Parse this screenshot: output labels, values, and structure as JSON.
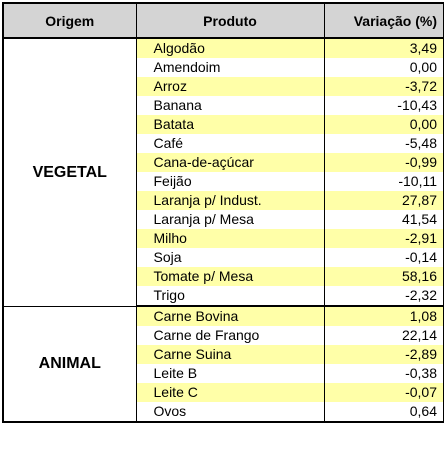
{
  "header": {
    "origem": "Origem",
    "produto": "Produto",
    "variacao": "Variação (%)"
  },
  "groups": [
    {
      "origin": "VEGETAL",
      "rows": [
        {
          "produto": "Algodão",
          "variacao": "3,49"
        },
        {
          "produto": "Amendoim",
          "variacao": "0,00"
        },
        {
          "produto": "Arroz",
          "variacao": "-3,72"
        },
        {
          "produto": "Banana",
          "variacao": "-10,43"
        },
        {
          "produto": "Batata",
          "variacao": "0,00"
        },
        {
          "produto": "Café",
          "variacao": "-5,48"
        },
        {
          "produto": "Cana-de-açúcar",
          "variacao": "-0,99"
        },
        {
          "produto": "Feijão",
          "variacao": "-10,11"
        },
        {
          "produto": "Laranja p/ Indust.",
          "variacao": "27,87"
        },
        {
          "produto": "Laranja p/ Mesa",
          "variacao": "41,54"
        },
        {
          "produto": "Milho",
          "variacao": "-2,91"
        },
        {
          "produto": "Soja",
          "variacao": "-0,14"
        },
        {
          "produto": "Tomate p/ Mesa",
          "variacao": "58,16"
        },
        {
          "produto": "Trigo",
          "variacao": "-2,32"
        }
      ]
    },
    {
      "origin": "ANIMAL",
      "rows": [
        {
          "produto": "Carne Bovina",
          "variacao": "1,08"
        },
        {
          "produto": "Carne de Frango",
          "variacao": "22,14"
        },
        {
          "produto": "Carne Suina",
          "variacao": "-2,89"
        },
        {
          "produto": "Leite B",
          "variacao": "-0,38"
        },
        {
          "produto": "Leite C",
          "variacao": "-0,07"
        },
        {
          "produto": "Ovos",
          "variacao": "0,64"
        }
      ]
    }
  ],
  "colors": {
    "header_bg": "#d4d4d4",
    "highlight_row": "#ffffa8",
    "plain_row": "#ffffff"
  }
}
